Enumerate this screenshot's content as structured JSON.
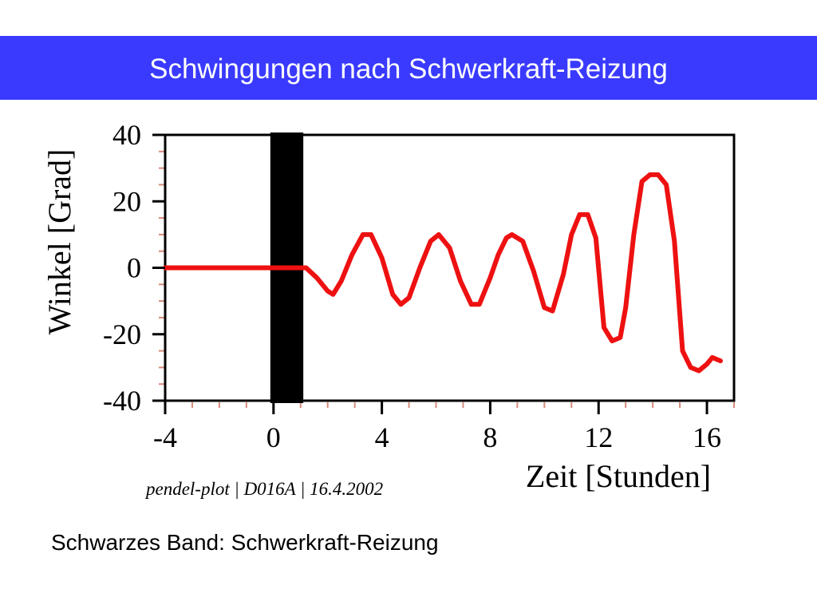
{
  "slide": {
    "title": "Schwingungen nach Schwerkraft-Reizung",
    "caption": "Schwarzes Band: Schwerkraft-Reizung"
  },
  "colors": {
    "title_bar": "#3a3aff",
    "series": "#ee1111",
    "band": "#000000",
    "tick_minor": "#d88a7a"
  },
  "chart_data": {
    "type": "line",
    "ylabel": "Winkel [Grad]",
    "xlabel": "Zeit [Stunden]",
    "footnote": "pendel-plot | D016A | 16.4.2002",
    "xlim": [
      -4,
      17
    ],
    "ylim": [
      -40,
      40
    ],
    "xticks": [
      -4,
      0,
      4,
      8,
      12,
      16
    ],
    "yticks": [
      40,
      20,
      0,
      -20,
      -40
    ],
    "grid": false,
    "band": {
      "label": "Schwerkraft-Reizung",
      "x_start": 0,
      "x_end": 1.1
    },
    "series": [
      {
        "x": [
          -4,
          0,
          0.2,
          0.9,
          1.2,
          1.6,
          2.0,
          2.2,
          2.5,
          2.9,
          3.3,
          3.6,
          4.0,
          4.4,
          4.7,
          5.0,
          5.4,
          5.8,
          6.1,
          6.5,
          6.9,
          7.3,
          7.6,
          8.0,
          8.3,
          8.6,
          8.8,
          9.2,
          9.6,
          10.0,
          10.3,
          10.7,
          11.0,
          11.3,
          11.6,
          11.9,
          12.2,
          12.5,
          12.8,
          13.0,
          13.3,
          13.6,
          13.9,
          14.2,
          14.5,
          14.8,
          15.1,
          15.4,
          15.7,
          16.0,
          16.2,
          16.5
        ],
        "y": [
          0,
          0,
          0,
          0,
          0,
          -3,
          -7,
          -8,
          -4,
          4,
          10,
          10,
          3,
          -8,
          -11,
          -9,
          0,
          8,
          10,
          6,
          -4,
          -11,
          -11,
          -3,
          4,
          9,
          10,
          8,
          -1,
          -12,
          -13,
          -2,
          10,
          16,
          16,
          9,
          -18,
          -22,
          -21,
          -12,
          10,
          26,
          28,
          28,
          25,
          8,
          -25,
          -30,
          -31,
          -29,
          -27,
          -28
        ]
      }
    ]
  }
}
